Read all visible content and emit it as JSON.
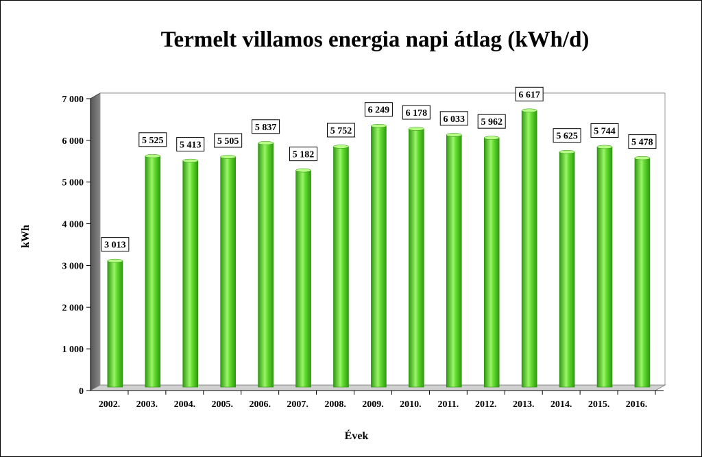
{
  "chart_data": {
    "type": "bar",
    "title": "Termelt villamos energia napi átlag (kWh/d)",
    "xlabel": "Évek",
    "ylabel": "kWh",
    "ylim": [
      0,
      7000
    ],
    "yticks": [
      0,
      1000,
      2000,
      3000,
      4000,
      5000,
      6000,
      7000
    ],
    "ytick_labels": [
      "0",
      "1 000",
      "2 000",
      "3 000",
      "4 000",
      "5 000",
      "6 000",
      "7 000"
    ],
    "grid": true,
    "categories": [
      "2002.",
      "2003.",
      "2004.",
      "2005.",
      "2006.",
      "2007.",
      "2008.",
      "2009.",
      "2010.",
      "2011.",
      "2012.",
      "2013.",
      "2014.",
      "2015.",
      "2016."
    ],
    "values": [
      3013,
      5525,
      5413,
      5505,
      5837,
      5182,
      5752,
      6249,
      6178,
      6033,
      5962,
      6617,
      5625,
      5744,
      5478
    ],
    "value_labels": [
      "3 013",
      "5 525",
      "5 413",
      "5 505",
      "5 837",
      "5 182",
      "5 752",
      "6 249",
      "6 178",
      "6 033",
      "5 962",
      "6 617",
      "5 625",
      "5 744",
      "5 478"
    ],
    "bar_color": "#66e033",
    "bar_dark": "#2f9a10",
    "bar_light": "#b8ff88"
  }
}
